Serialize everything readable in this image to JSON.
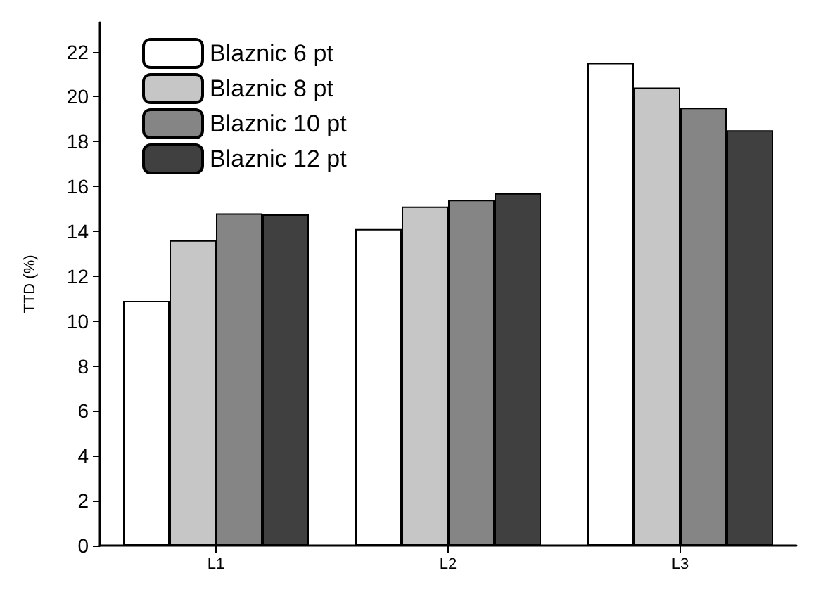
{
  "chart_data": {
    "type": "bar",
    "ylabel": "TTD (%)",
    "categories": [
      "L1",
      "L2",
      "L3"
    ],
    "series": [
      {
        "name": "Blaznic 6 pt",
        "color": "#ffffff",
        "values": [
          10.9,
          14.1,
          21.5
        ]
      },
      {
        "name": "Blaznic 8 pt",
        "color": "#c6c6c6",
        "values": [
          13.6,
          15.1,
          20.4
        ]
      },
      {
        "name": "Blaznic 10 pt",
        "color": "#858585",
        "values": [
          14.8,
          15.4,
          19.5
        ]
      },
      {
        "name": "Blaznic 12 pt",
        "color": "#404040",
        "values": [
          14.75,
          15.7,
          18.5
        ]
      }
    ],
    "ylim": [
      0,
      23.3
    ],
    "yticks": [
      0,
      2,
      4,
      6,
      8,
      10,
      12,
      14,
      16,
      18,
      20,
      22
    ],
    "grid": false,
    "legend": "top left"
  }
}
